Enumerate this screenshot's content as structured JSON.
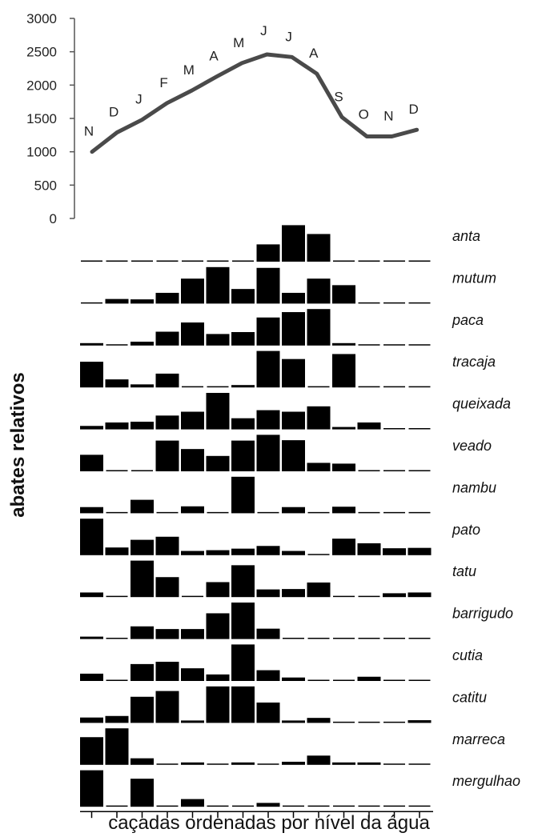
{
  "chart_data": [
    {
      "type": "line",
      "title": "",
      "xlabel": "",
      "ylabel": "",
      "ylim": [
        0,
        3000
      ],
      "y_ticks": [
        "0",
        "500",
        "1000",
        "1500",
        "2000",
        "2500",
        "3000"
      ],
      "grid": false,
      "legend": "none",
      "categories": [
        "N",
        "D",
        "J",
        "F",
        "M",
        "A",
        "M",
        "J",
        "J",
        "A",
        "S",
        "O",
        "N",
        "D"
      ],
      "values": [
        1000,
        1290,
        1480,
        1730,
        1920,
        2130,
        2330,
        2460,
        2420,
        2170,
        1520,
        1230,
        1230,
        1330
      ],
      "line_color": "#4a4a4a"
    },
    {
      "type": "bar",
      "title": "",
      "xlabel": "caçadas ordenadas por nível da água",
      "ylabel": "abates relativos",
      "bar_color": "#000000",
      "n_bins": 14,
      "series": [
        {
          "name": "anta",
          "values": [
            0,
            0,
            0,
            0,
            0,
            0,
            0,
            0.45,
            0.95,
            0.72,
            0,
            0,
            0,
            0
          ]
        },
        {
          "name": "mutum",
          "values": [
            0,
            0.12,
            0.11,
            0.28,
            0.65,
            0.95,
            0.38,
            0.93,
            0.28,
            0.65,
            0.48,
            0,
            0,
            0
          ]
        },
        {
          "name": "paca",
          "values": [
            0.03,
            0,
            0.1,
            0.36,
            0.6,
            0.3,
            0.35,
            0.73,
            0.87,
            0.95,
            0.02,
            0,
            0,
            0
          ]
        },
        {
          "name": "tracaja",
          "values": [
            0.67,
            0.21,
            0.08,
            0.36,
            0,
            0,
            0.06,
            0.95,
            0.74,
            0,
            0.87,
            0,
            0,
            0
          ]
        },
        {
          "name": "queixada",
          "values": [
            0.09,
            0.18,
            0.2,
            0.36,
            0.46,
            0.95,
            0.29,
            0.5,
            0.46,
            0.6,
            0.06,
            0.18,
            0,
            0
          ]
        },
        {
          "name": "veado",
          "values": [
            0.43,
            0,
            0,
            0.8,
            0.58,
            0.4,
            0.8,
            0.95,
            0.81,
            0.22,
            0.2,
            0,
            0,
            0
          ]
        },
        {
          "name": "nambu",
          "values": [
            0.16,
            0,
            0.35,
            0,
            0.18,
            0,
            0.95,
            0,
            0.16,
            0,
            0.17,
            0,
            0,
            0
          ]
        },
        {
          "name": "pato",
          "values": [
            0.95,
            0.2,
            0.4,
            0.48,
            0.11,
            0.13,
            0.17,
            0.24,
            0.11,
            0,
            0.43,
            0.31,
            0.18,
            0.19
          ]
        },
        {
          "name": "tatu",
          "values": [
            0.12,
            0,
            0.95,
            0.52,
            0,
            0.39,
            0.83,
            0.2,
            0.21,
            0.38,
            0,
            0,
            0.1,
            0.12
          ]
        },
        {
          "name": "barrigudo",
          "values": [
            0.05,
            0,
            0.33,
            0.26,
            0.26,
            0.67,
            0.95,
            0.27,
            0,
            0,
            0,
            0,
            0,
            0
          ]
        },
        {
          "name": "cutia",
          "values": [
            0.19,
            0,
            0.44,
            0.5,
            0.33,
            0.17,
            0.95,
            0.28,
            0.09,
            0,
            0,
            0.11,
            0,
            0
          ]
        },
        {
          "name": "catitu",
          "values": [
            0.14,
            0.18,
            0.68,
            0.83,
            0.04,
            0.95,
            0.95,
            0.53,
            0.04,
            0.13,
            0,
            0,
            0,
            0.07
          ]
        },
        {
          "name": "marreca",
          "values": [
            0.72,
            0.95,
            0.17,
            0,
            0.06,
            0,
            0.06,
            0,
            0.08,
            0.24,
            0.06,
            0.06,
            0,
            0
          ]
        },
        {
          "name": "mergulhao",
          "values": [
            0.95,
            0,
            0.73,
            0,
            0.2,
            0,
            0,
            0.1,
            0,
            0,
            0,
            0,
            0,
            0
          ]
        }
      ]
    }
  ]
}
